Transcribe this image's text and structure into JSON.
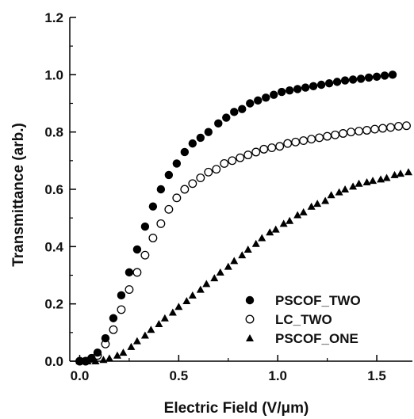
{
  "chart_data": {
    "type": "scatter",
    "title": "",
    "xlabel": "Electric Field (V/μm)",
    "ylabel": "Transmittance (arb.)",
    "xlim": [
      -0.05,
      1.68
    ],
    "ylim": [
      0.0,
      1.2
    ],
    "xticks": [
      "0.0",
      "0.5",
      "1.0",
      "1.5"
    ],
    "yticks": [
      "0.0",
      "0.2",
      "0.4",
      "0.6",
      "0.8",
      "1.0",
      "1.2"
    ],
    "grid": false,
    "legend_position": "bottom-right",
    "series": [
      {
        "name": "PSCOF_TWO",
        "marker": "filled-circle",
        "color": "#000000",
        "x": [
          0.0,
          0.03,
          0.06,
          0.09,
          0.13,
          0.17,
          0.21,
          0.25,
          0.29,
          0.33,
          0.37,
          0.41,
          0.45,
          0.49,
          0.53,
          0.57,
          0.61,
          0.65,
          0.7,
          0.74,
          0.78,
          0.82,
          0.86,
          0.9,
          0.94,
          0.98,
          1.02,
          1.06,
          1.1,
          1.14,
          1.18,
          1.22,
          1.26,
          1.3,
          1.34,
          1.38,
          1.42,
          1.46,
          1.5,
          1.54,
          1.58
        ],
        "y": [
          0.0,
          0.0,
          0.01,
          0.03,
          0.08,
          0.15,
          0.23,
          0.31,
          0.39,
          0.47,
          0.54,
          0.6,
          0.65,
          0.69,
          0.73,
          0.76,
          0.78,
          0.8,
          0.83,
          0.85,
          0.87,
          0.88,
          0.9,
          0.91,
          0.92,
          0.93,
          0.94,
          0.945,
          0.95,
          0.955,
          0.96,
          0.965,
          0.97,
          0.975,
          0.98,
          0.983,
          0.986,
          0.99,
          0.993,
          0.997,
          1.0
        ]
      },
      {
        "name": "LC_TWO",
        "marker": "open-circle",
        "color": "#000000",
        "x": [
          0.0,
          0.03,
          0.06,
          0.09,
          0.13,
          0.17,
          0.21,
          0.25,
          0.29,
          0.33,
          0.37,
          0.41,
          0.45,
          0.49,
          0.53,
          0.57,
          0.61,
          0.65,
          0.69,
          0.73,
          0.77,
          0.81,
          0.85,
          0.89,
          0.93,
          0.97,
          1.01,
          1.05,
          1.09,
          1.13,
          1.17,
          1.21,
          1.25,
          1.29,
          1.33,
          1.37,
          1.41,
          1.45,
          1.49,
          1.53,
          1.57,
          1.61,
          1.65
        ],
        "y": [
          0.0,
          0.0,
          0.01,
          0.02,
          0.06,
          0.11,
          0.18,
          0.25,
          0.31,
          0.37,
          0.43,
          0.48,
          0.53,
          0.57,
          0.6,
          0.62,
          0.64,
          0.66,
          0.67,
          0.69,
          0.7,
          0.71,
          0.72,
          0.73,
          0.74,
          0.745,
          0.75,
          0.76,
          0.765,
          0.77,
          0.775,
          0.78,
          0.785,
          0.79,
          0.795,
          0.8,
          0.803,
          0.806,
          0.81,
          0.813,
          0.816,
          0.82,
          0.822
        ]
      },
      {
        "name": "PSCOF_ONE",
        "marker": "filled-triangle",
        "color": "#000000",
        "x": [
          0.0,
          0.04,
          0.08,
          0.12,
          0.15,
          0.19,
          0.22,
          0.26,
          0.29,
          0.33,
          0.36,
          0.4,
          0.43,
          0.47,
          0.5,
          0.54,
          0.57,
          0.61,
          0.64,
          0.68,
          0.71,
          0.75,
          0.78,
          0.82,
          0.85,
          0.89,
          0.92,
          0.96,
          0.99,
          1.03,
          1.06,
          1.1,
          1.13,
          1.17,
          1.2,
          1.24,
          1.27,
          1.31,
          1.34,
          1.38,
          1.41,
          1.45,
          1.48,
          1.52,
          1.55,
          1.59,
          1.62,
          1.66
        ],
        "y": [
          0.0,
          0.0,
          0.0,
          0.005,
          0.01,
          0.02,
          0.03,
          0.05,
          0.07,
          0.09,
          0.11,
          0.13,
          0.15,
          0.17,
          0.19,
          0.21,
          0.23,
          0.25,
          0.27,
          0.29,
          0.31,
          0.33,
          0.35,
          0.37,
          0.39,
          0.41,
          0.43,
          0.45,
          0.46,
          0.48,
          0.49,
          0.51,
          0.52,
          0.54,
          0.55,
          0.56,
          0.58,
          0.59,
          0.6,
          0.61,
          0.62,
          0.625,
          0.63,
          0.635,
          0.64,
          0.65,
          0.655,
          0.66
        ]
      }
    ]
  }
}
